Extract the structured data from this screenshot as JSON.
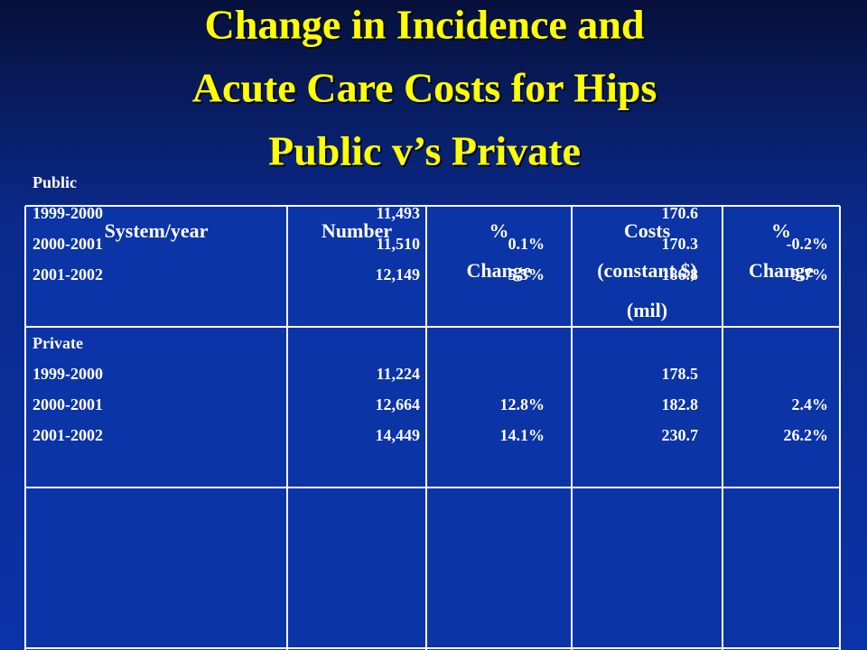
{
  "title_lines": [
    "Change in Incidence and",
    "Acute Care Costs for Hips",
    "Public v’s Private"
  ],
  "table": {
    "header": [
      [
        "System/year"
      ],
      [
        "Number"
      ],
      [
        "%",
        "Change"
      ],
      [
        "Costs",
        "(constant $)",
        "(mil)"
      ],
      [
        "%",
        "Change"
      ]
    ],
    "rows": [
      [
        [
          "Public",
          "1999-2000",
          "2000-2001",
          "2001-2002"
        ],
        [
          "11,493",
          "11,510",
          "12,149"
        ],
        [
          "0.1%",
          "5.5%"
        ],
        [
          "170.6",
          "170.3",
          "186.8"
        ],
        [
          "-0.2%",
          "9.7%"
        ]
      ],
      [
        [
          "Private",
          "1999-2000",
          "2000-2001",
          "2001-2002"
        ],
        [
          "11,224",
          "12,664",
          "14,449"
        ],
        [
          "12.8%",
          "14.1%"
        ],
        [
          "178.5",
          "182.8",
          "230.7"
        ],
        [
          "2.4%",
          "26.2%"
        ]
      ]
    ]
  }
}
